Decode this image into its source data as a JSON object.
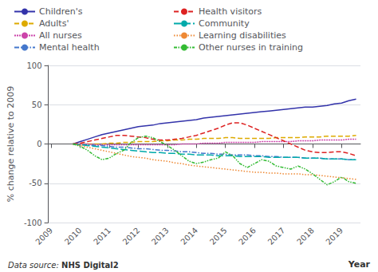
{
  "chart_data": {
    "type": "line",
    "x": [
      2009.75,
      2010.0,
      2010.25,
      2010.5,
      2010.75,
      2011.0,
      2011.25,
      2011.5,
      2011.75,
      2012.0,
      2012.25,
      2012.5,
      2012.75,
      2013.0,
      2013.25,
      2013.5,
      2013.75,
      2014.0,
      2014.25,
      2014.5,
      2014.75,
      2015.0,
      2015.25,
      2015.5,
      2015.75,
      2016.0,
      2016.25,
      2016.5,
      2016.75,
      2017.0,
      2017.25,
      2017.5,
      2017.75,
      2018.0,
      2018.25,
      2018.5,
      2018.75,
      2019.0,
      2019.25,
      2019.5
    ],
    "series": [
      {
        "name": "Children's",
        "color": "#3333aa",
        "line_style": "solid",
        "values": [
          0,
          3,
          6,
          9,
          12,
          14,
          16,
          18,
          20,
          22,
          23,
          24,
          26,
          27,
          28,
          29,
          30,
          31,
          33,
          34,
          35,
          36,
          37,
          38,
          39,
          40,
          41,
          42,
          43,
          44,
          45,
          46,
          47,
          47,
          48,
          49,
          51,
          52,
          55,
          57
        ]
      },
      {
        "name": "Adults'",
        "color": "#ddaa00",
        "line_style": "dashed",
        "values": [
          0,
          0,
          0,
          0,
          0,
          1,
          1,
          2,
          2,
          3,
          3,
          3,
          4,
          4,
          5,
          5,
          6,
          6,
          7,
          7,
          7,
          8,
          8,
          7,
          7,
          7,
          7,
          7,
          8,
          8,
          8,
          8,
          9,
          9,
          9,
          10,
          10,
          10,
          10,
          11
        ]
      },
      {
        "name": "All nurses",
        "color": "#cc44aa",
        "line_style": "densedashed",
        "values": [
          0,
          0,
          0,
          -1,
          -1,
          -1,
          -1,
          -1,
          -1,
          -1,
          -1,
          -1,
          -1,
          -1,
          -1,
          0,
          0,
          0,
          1,
          1,
          1,
          2,
          2,
          2,
          2,
          2,
          3,
          3,
          3,
          3,
          3,
          4,
          4,
          4,
          5,
          5,
          5,
          5,
          6,
          6
        ]
      },
      {
        "name": "Mental health",
        "color": "#4477cc",
        "line_style": "dashdot",
        "values": [
          0,
          -1,
          -1,
          -2,
          -2,
          -3,
          -4,
          -4,
          -5,
          -6,
          -6,
          -7,
          -8,
          -8,
          -9,
          -10,
          -10,
          -11,
          -12,
          -12,
          -13,
          -13,
          -14,
          -14,
          -14,
          -15,
          -15,
          -16,
          -16,
          -17,
          -17,
          -17,
          -18,
          -18,
          -18,
          -19,
          -19,
          -19,
          -20,
          -20
        ]
      },
      {
        "name": "Health visitors",
        "color": "#dd2222",
        "line_style": "dashed",
        "values": [
          0,
          1,
          3,
          5,
          7,
          9,
          11,
          11,
          10,
          9,
          8,
          6,
          5,
          5,
          6,
          7,
          9,
          11,
          14,
          17,
          20,
          24,
          27,
          27,
          24,
          20,
          16,
          12,
          8,
          4,
          0,
          -4,
          -8,
          -10,
          -11,
          -11,
          -10,
          -10,
          -12,
          -15
        ]
      },
      {
        "name": "Community",
        "color": "#00aaaa",
        "line_style": "longdashed",
        "values": [
          0,
          -1,
          -2,
          -3,
          -4,
          -5,
          -6,
          -7,
          -8,
          -9,
          -10,
          -11,
          -11,
          -12,
          -12,
          -13,
          -13,
          -14,
          -14,
          -14,
          -15,
          -15,
          -15,
          -16,
          -16,
          -16,
          -16,
          -17,
          -17,
          -17,
          -17,
          -17,
          -18,
          -18,
          -18,
          -19,
          -19,
          -19,
          -20,
          -20
        ]
      },
      {
        "name": "Learning disabilities",
        "color": "#ee8833",
        "line_style": "dotted",
        "values": [
          0,
          -2,
          -4,
          -6,
          -8,
          -10,
          -12,
          -14,
          -16,
          -17,
          -18,
          -20,
          -21,
          -22,
          -24,
          -25,
          -27,
          -28,
          -29,
          -30,
          -31,
          -32,
          -33,
          -34,
          -35,
          -36,
          -36,
          -37,
          -37,
          -38,
          -38,
          -38,
          -39,
          -39,
          -40,
          -41,
          -42,
          -43,
          -44,
          -45
        ]
      },
      {
        "name": "Other nurses in training",
        "color": "#33bb33",
        "line_style": "dashdotdot",
        "values": [
          0,
          -3,
          -8,
          -15,
          -20,
          -18,
          -12,
          -8,
          2,
          8,
          10,
          8,
          3,
          -2,
          -8,
          -15,
          -22,
          -25,
          -23,
          -20,
          -18,
          -10,
          -15,
          -25,
          -30,
          -25,
          -20,
          -22,
          -28,
          -30,
          -32,
          -28,
          -32,
          -38,
          -45,
          -52,
          -48,
          -42,
          -48,
          -50
        ]
      }
    ],
    "ylabel": "% change relative to 2009",
    "xlabel": "Year",
    "ylim": [
      -100,
      100
    ],
    "yticks": [
      -100,
      -50,
      0,
      50,
      100
    ],
    "xlim": [
      2008.9,
      2019.65
    ],
    "xticks": [
      2009,
      2010,
      2011,
      2012,
      2013,
      2014,
      2015,
      2016,
      2017,
      2018,
      2019
    ],
    "annotations": [
      "Data source: ",
      "NHS Digital2"
    ],
    "grid": true,
    "legend": "upper left"
  }
}
